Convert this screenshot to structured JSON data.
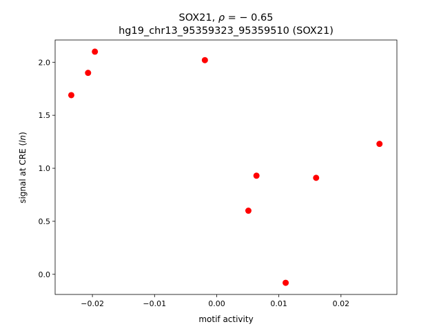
{
  "chart_data": {
    "type": "scatter",
    "title_line1_prefix": "SOX21, ",
    "title_line1_rho": "ρ",
    "title_line1_suffix": " = − 0.65",
    "title_line2": "hg19_chr13_95359323_95359510 (SOX21)",
    "xlabel": "motif activity",
    "ylabel_prefix": "signal at CRE (",
    "ylabel_italic": "ln",
    "ylabel_suffix": ")",
    "xlim": [
      -0.026,
      0.029
    ],
    "ylim": [
      -0.19,
      2.21
    ],
    "xticks": [
      {
        "value": -0.02,
        "label": "−0.02"
      },
      {
        "value": -0.01,
        "label": "−0.01"
      },
      {
        "value": 0.0,
        "label": "0.00"
      },
      {
        "value": 0.01,
        "label": "0.01"
      },
      {
        "value": 0.02,
        "label": "0.02"
      }
    ],
    "yticks": [
      {
        "value": 0.0,
        "label": "0.0"
      },
      {
        "value": 0.5,
        "label": "0.5"
      },
      {
        "value": 1.0,
        "label": "1.0"
      },
      {
        "value": 1.5,
        "label": "1.5"
      },
      {
        "value": 2.0,
        "label": "2.0"
      }
    ],
    "marker_color": "#ff0000",
    "points": [
      {
        "x": -0.0234,
        "y": 1.69
      },
      {
        "x": -0.0207,
        "y": 1.9
      },
      {
        "x": -0.0196,
        "y": 2.1
      },
      {
        "x": -0.0019,
        "y": 2.02
      },
      {
        "x": 0.0051,
        "y": 0.6
      },
      {
        "x": 0.0064,
        "y": 0.93
      },
      {
        "x": 0.0111,
        "y": -0.08
      },
      {
        "x": 0.016,
        "y": 0.91
      },
      {
        "x": 0.0262,
        "y": 1.23
      }
    ]
  }
}
